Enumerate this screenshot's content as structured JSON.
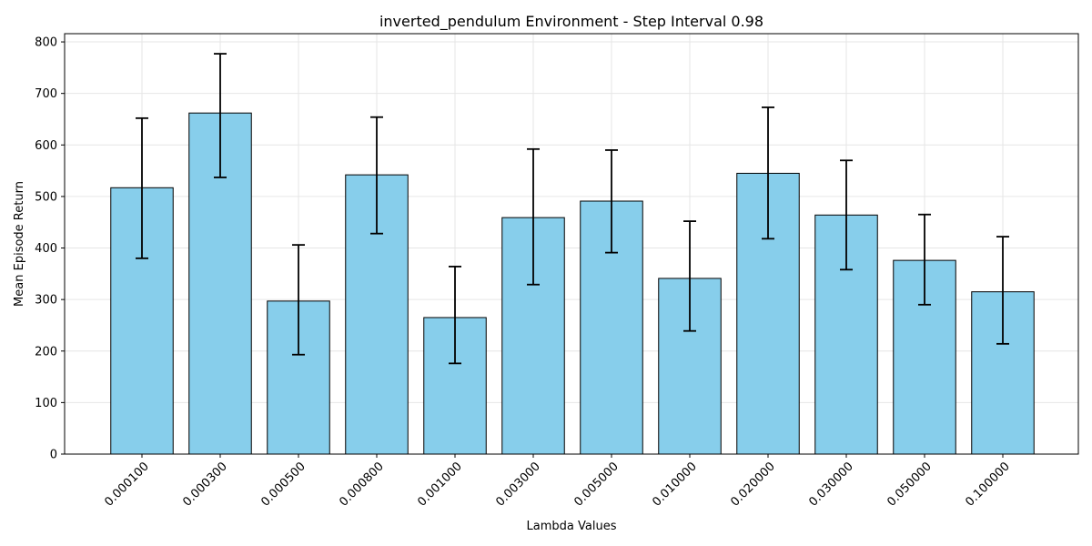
{
  "chart_data": {
    "type": "bar",
    "title": "inverted_pendulum Environment - Step Interval 0.98",
    "xlabel": "Lambda Values",
    "ylabel": "Mean Episode Return",
    "categories": [
      "0.000100",
      "0.000300",
      "0.000500",
      "0.000800",
      "0.001000",
      "0.003000",
      "0.005000",
      "0.010000",
      "0.020000",
      "0.030000",
      "0.050000",
      "0.100000"
    ],
    "values": [
      517,
      662,
      297,
      542,
      265,
      459,
      491,
      341,
      545,
      464,
      376,
      315
    ],
    "error_low": [
      380,
      537,
      193,
      428,
      176,
      329,
      391,
      239,
      418,
      358,
      290,
      214
    ],
    "error_high": [
      652,
      777,
      406,
      654,
      364,
      592,
      590,
      452,
      673,
      570,
      465,
      422
    ],
    "yticks": [
      0,
      100,
      200,
      300,
      400,
      500,
      600,
      700,
      800
    ],
    "ylim": [
      0,
      816
    ],
    "grid": true,
    "colors": {
      "bar": "#87ceeb",
      "bar_edge": "#000000",
      "error_bar": "#000000",
      "grid": "#e6e6e6"
    }
  }
}
